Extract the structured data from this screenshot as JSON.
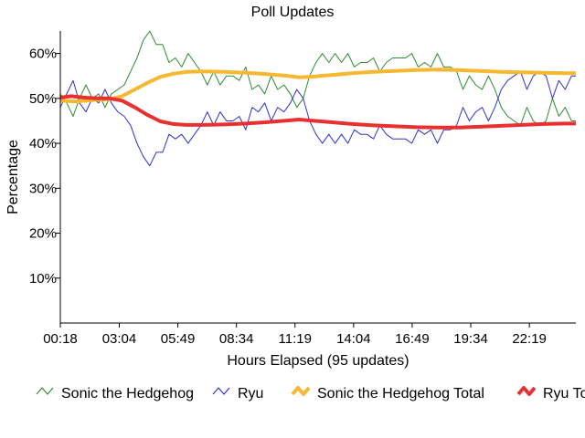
{
  "chart_data": {
    "type": "line",
    "title": "Poll Updates",
    "xlabel": "Hours Elapsed (95 updates)",
    "ylabel": "Percentage",
    "ylim": [
      0,
      65
    ],
    "xlim": [
      0.3,
      24.5
    ],
    "x_unit": "hours",
    "y_ticks": [
      10,
      20,
      30,
      40,
      50,
      60
    ],
    "y_tick_labels": [
      "10%",
      "20%",
      "30%",
      "40%",
      "50%",
      "60%"
    ],
    "x_ticks": [
      0.3,
      3.067,
      5.817,
      8.567,
      11.317,
      14.067,
      16.817,
      19.567,
      22.317
    ],
    "x_tick_labels": [
      "00:18",
      "03:04",
      "05:49",
      "08:34",
      "11:19",
      "14:04",
      "16:49",
      "19:34",
      "22:19"
    ],
    "grid": false,
    "legend_position": "bottom",
    "series": [
      {
        "name": "Sonic the Hedgehog",
        "color": "#2e8b2e",
        "style": "thin-line",
        "points": [
          [
            0.3,
            51
          ],
          [
            0.6,
            49
          ],
          [
            0.9,
            46
          ],
          [
            1.2,
            50
          ],
          [
            1.5,
            53
          ],
          [
            1.8,
            50
          ],
          [
            2.1,
            51
          ],
          [
            2.4,
            48
          ],
          [
            2.7,
            51
          ],
          [
            3.0,
            52
          ],
          [
            3.3,
            53
          ],
          [
            3.6,
            56
          ],
          [
            3.9,
            59
          ],
          [
            4.2,
            63
          ],
          [
            4.5,
            65
          ],
          [
            4.8,
            62
          ],
          [
            5.1,
            62
          ],
          [
            5.4,
            58
          ],
          [
            5.7,
            59
          ],
          [
            6.0,
            57
          ],
          [
            6.3,
            60
          ],
          [
            6.6,
            58
          ],
          [
            6.9,
            56
          ],
          [
            7.2,
            53
          ],
          [
            7.5,
            56
          ],
          [
            7.8,
            53
          ],
          [
            8.1,
            55
          ],
          [
            8.4,
            55
          ],
          [
            8.7,
            54
          ],
          [
            9.0,
            57
          ],
          [
            9.3,
            52
          ],
          [
            9.6,
            53
          ],
          [
            9.9,
            51
          ],
          [
            10.2,
            55
          ],
          [
            10.5,
            52
          ],
          [
            10.8,
            53
          ],
          [
            11.1,
            51
          ],
          [
            11.4,
            48
          ],
          [
            11.7,
            50
          ],
          [
            12.0,
            55
          ],
          [
            12.3,
            58
          ],
          [
            12.6,
            60
          ],
          [
            12.9,
            58
          ],
          [
            13.2,
            60
          ],
          [
            13.5,
            58
          ],
          [
            13.8,
            60
          ],
          [
            14.1,
            57
          ],
          [
            14.4,
            58
          ],
          [
            14.7,
            58
          ],
          [
            15.0,
            59
          ],
          [
            15.3,
            56
          ],
          [
            15.6,
            58
          ],
          [
            15.9,
            59
          ],
          [
            16.2,
            59
          ],
          [
            16.5,
            59
          ],
          [
            16.8,
            60
          ],
          [
            17.1,
            57
          ],
          [
            17.4,
            58
          ],
          [
            17.7,
            57
          ],
          [
            18.0,
            60
          ],
          [
            18.3,
            57
          ],
          [
            18.6,
            57
          ],
          [
            18.9,
            56
          ],
          [
            19.2,
            52
          ],
          [
            19.5,
            55
          ],
          [
            19.8,
            53
          ],
          [
            20.1,
            52
          ],
          [
            20.4,
            55
          ],
          [
            20.7,
            52
          ],
          [
            21.0,
            48
          ],
          [
            21.3,
            46
          ],
          [
            21.6,
            45
          ],
          [
            21.9,
            44
          ],
          [
            22.2,
            48
          ],
          [
            22.5,
            45
          ],
          [
            22.8,
            44
          ],
          [
            23.1,
            45
          ],
          [
            23.4,
            50
          ],
          [
            23.7,
            46
          ],
          [
            24.0,
            48
          ],
          [
            24.3,
            45
          ],
          [
            24.5,
            45
          ]
        ]
      },
      {
        "name": "Ryu",
        "color": "#3030d0",
        "style": "thin-line",
        "points": [
          [
            0.3,
            48
          ],
          [
            0.6,
            51
          ],
          [
            0.9,
            54
          ],
          [
            1.2,
            49
          ],
          [
            1.5,
            47
          ],
          [
            1.8,
            50
          ],
          [
            2.1,
            49
          ],
          [
            2.4,
            52
          ],
          [
            2.7,
            49
          ],
          [
            3.0,
            47
          ],
          [
            3.3,
            46
          ],
          [
            3.6,
            44
          ],
          [
            3.9,
            40
          ],
          [
            4.2,
            37
          ],
          [
            4.5,
            35
          ],
          [
            4.8,
            38
          ],
          [
            5.1,
            38
          ],
          [
            5.4,
            42
          ],
          [
            5.7,
            41
          ],
          [
            6.0,
            42
          ],
          [
            6.3,
            40
          ],
          [
            6.6,
            42
          ],
          [
            6.9,
            44
          ],
          [
            7.2,
            47
          ],
          [
            7.5,
            44
          ],
          [
            7.8,
            47
          ],
          [
            8.1,
            45
          ],
          [
            8.4,
            45
          ],
          [
            8.7,
            46
          ],
          [
            9.0,
            43
          ],
          [
            9.3,
            48
          ],
          [
            9.6,
            47
          ],
          [
            9.9,
            49
          ],
          [
            10.2,
            45
          ],
          [
            10.5,
            48
          ],
          [
            10.8,
            47
          ],
          [
            11.1,
            49
          ],
          [
            11.4,
            52
          ],
          [
            11.7,
            50
          ],
          [
            12.0,
            45
          ],
          [
            12.3,
            42
          ],
          [
            12.6,
            40
          ],
          [
            12.9,
            42
          ],
          [
            13.2,
            40
          ],
          [
            13.5,
            42
          ],
          [
            13.8,
            40
          ],
          [
            14.1,
            43
          ],
          [
            14.4,
            42
          ],
          [
            14.7,
            42
          ],
          [
            15.0,
            41
          ],
          [
            15.3,
            44
          ],
          [
            15.6,
            42
          ],
          [
            15.9,
            41
          ],
          [
            16.2,
            41
          ],
          [
            16.5,
            41
          ],
          [
            16.8,
            40
          ],
          [
            17.1,
            43
          ],
          [
            17.4,
            42
          ],
          [
            17.7,
            43
          ],
          [
            18.0,
            40
          ],
          [
            18.3,
            43
          ],
          [
            18.6,
            43
          ],
          [
            18.9,
            44
          ],
          [
            19.2,
            48
          ],
          [
            19.5,
            45
          ],
          [
            19.8,
            47
          ],
          [
            20.1,
            48
          ],
          [
            20.4,
            45
          ],
          [
            20.7,
            48
          ],
          [
            21.0,
            52
          ],
          [
            21.3,
            54
          ],
          [
            21.6,
            55
          ],
          [
            21.9,
            56
          ],
          [
            22.2,
            52
          ],
          [
            22.5,
            55
          ],
          [
            22.8,
            56
          ],
          [
            23.1,
            55
          ],
          [
            23.4,
            50
          ],
          [
            23.7,
            54
          ],
          [
            24.0,
            52
          ],
          [
            24.3,
            55
          ],
          [
            24.5,
            55
          ]
        ]
      },
      {
        "name": "Sonic the Hedgehog Total",
        "color": "#f5b830",
        "style": "thick-line",
        "points": [
          [
            0.3,
            49.5
          ],
          [
            1.0,
            49.3
          ],
          [
            1.8,
            49.6
          ],
          [
            2.6,
            49.8
          ],
          [
            3.2,
            50.5
          ],
          [
            3.8,
            52.0
          ],
          [
            4.4,
            53.5
          ],
          [
            5.0,
            54.8
          ],
          [
            5.6,
            55.5
          ],
          [
            6.2,
            55.9
          ],
          [
            7.0,
            56.0
          ],
          [
            8.0,
            55.9
          ],
          [
            9.0,
            55.7
          ],
          [
            10.0,
            55.4
          ],
          [
            11.0,
            55.0
          ],
          [
            11.5,
            54.7
          ],
          [
            12.0,
            54.8
          ],
          [
            13.0,
            55.2
          ],
          [
            14.0,
            55.6
          ],
          [
            15.0,
            55.9
          ],
          [
            16.0,
            56.1
          ],
          [
            17.0,
            56.3
          ],
          [
            18.0,
            56.4
          ],
          [
            19.0,
            56.3
          ],
          [
            20.0,
            56.1
          ],
          [
            21.0,
            55.9
          ],
          [
            22.0,
            55.8
          ],
          [
            23.0,
            55.7
          ],
          [
            24.0,
            55.6
          ],
          [
            24.5,
            55.6
          ]
        ]
      },
      {
        "name": "Ryu Total",
        "color": "#e83030",
        "style": "thick-line",
        "points": [
          [
            0.3,
            50.2
          ],
          [
            0.8,
            50.5
          ],
          [
            1.4,
            50.2
          ],
          [
            2.0,
            50.0
          ],
          [
            2.6,
            50.0
          ],
          [
            3.2,
            49.5
          ],
          [
            3.8,
            48.0
          ],
          [
            4.4,
            46.3
          ],
          [
            5.0,
            44.9
          ],
          [
            5.6,
            44.3
          ],
          [
            6.2,
            44.1
          ],
          [
            7.0,
            44.1
          ],
          [
            8.0,
            44.2
          ],
          [
            9.0,
            44.4
          ],
          [
            10.0,
            44.7
          ],
          [
            11.0,
            45.1
          ],
          [
            11.5,
            45.3
          ],
          [
            12.0,
            45.1
          ],
          [
            13.0,
            44.7
          ],
          [
            14.0,
            44.3
          ],
          [
            15.0,
            44.0
          ],
          [
            16.0,
            43.8
          ],
          [
            17.0,
            43.6
          ],
          [
            18.0,
            43.5
          ],
          [
            19.0,
            43.5
          ],
          [
            20.0,
            43.7
          ],
          [
            21.0,
            43.9
          ],
          [
            22.0,
            44.1
          ],
          [
            23.0,
            44.3
          ],
          [
            24.0,
            44.4
          ],
          [
            24.5,
            44.4
          ]
        ]
      }
    ]
  }
}
